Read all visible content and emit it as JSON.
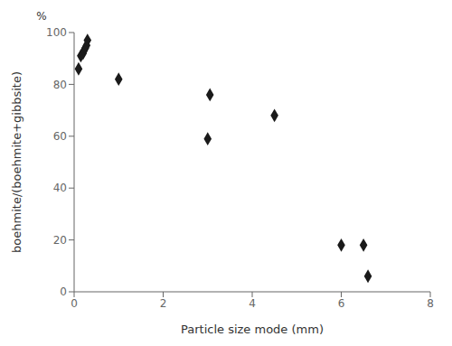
{
  "chart_data": {
    "type": "scatter",
    "x": [
      0.1,
      0.15,
      0.2,
      0.22,
      0.25,
      0.28,
      0.3,
      1.0,
      3.0,
      3.05,
      4.5,
      6.0,
      6.5,
      6.6
    ],
    "values": [
      86,
      91,
      92,
      93,
      94,
      95,
      97,
      82,
      59,
      76,
      68,
      18,
      18,
      6
    ],
    "marker": "diamond",
    "color": "#1a1a1a",
    "xlabel": "Particle size mode (mm)",
    "ylabel": "boehmite/(boehmite+gibbsite)",
    "annotations": [
      "%"
    ],
    "xlim": [
      0,
      8
    ],
    "ylim": [
      0,
      100
    ],
    "xticks": [
      0,
      2,
      4,
      6,
      8
    ],
    "yticks": [
      0,
      20,
      40,
      60,
      80,
      100
    ],
    "grid": false
  }
}
